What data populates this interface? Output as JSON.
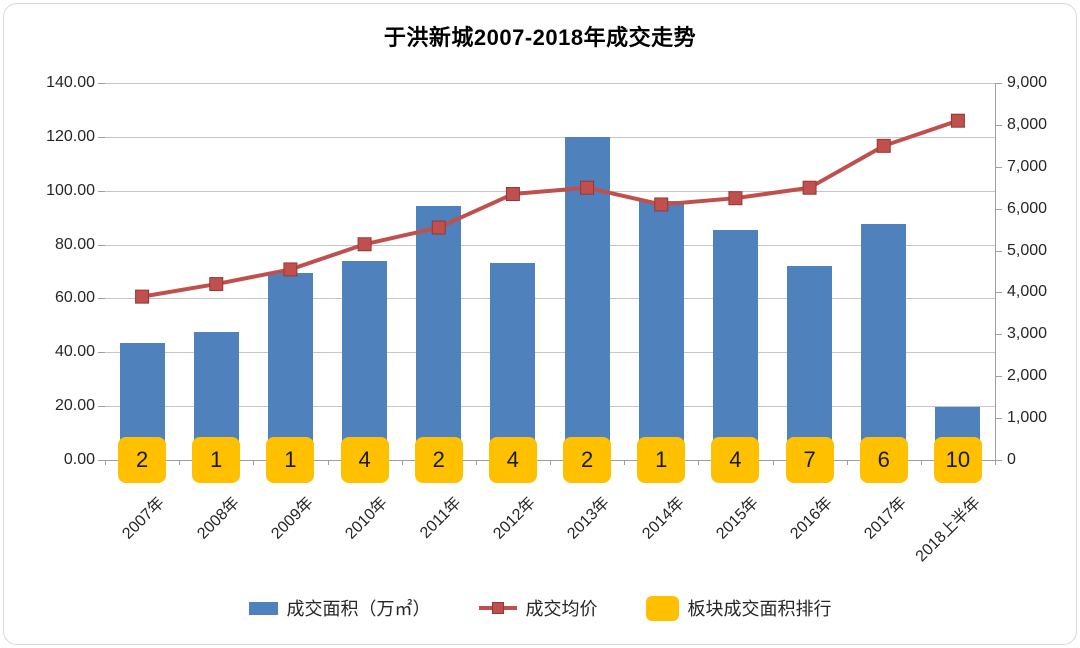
{
  "title": "于洪新城2007-2018年成交走势",
  "chart_data": {
    "type": "bar",
    "subtype": "bar+line combo with ranking badges",
    "title": "于洪新城2007-2018年成交走势",
    "categories": [
      "2007年",
      "2008年",
      "2009年",
      "2010年",
      "2011年",
      "2012年",
      "2013年",
      "2014年",
      "2015年",
      "2016年",
      "2017年",
      "2018上半年"
    ],
    "series": [
      {
        "name": "成交面积（万㎡）",
        "type": "bar",
        "axis": "left",
        "color": "#4f81bd",
        "values": [
          43.5,
          47.5,
          69.5,
          74.0,
          94.5,
          73.0,
          120.0,
          96.0,
          85.5,
          72.0,
          87.5,
          19.8
        ]
      },
      {
        "name": "成交均价",
        "type": "line",
        "axis": "right",
        "color": "#c0504d",
        "marker": "square",
        "values": [
          3900,
          4200,
          4550,
          5150,
          5550,
          6350,
          6500,
          6100,
          6250,
          6500,
          7500,
          8100
        ]
      },
      {
        "name": "板块成交面积排行",
        "type": "badge",
        "color": "#ffc000",
        "values": [
          2,
          1,
          1,
          4,
          2,
          4,
          2,
          1,
          4,
          7,
          6,
          10
        ]
      }
    ],
    "left_axis": {
      "min": 0,
      "max": 140,
      "step": 20,
      "ticks": [
        "0.00",
        "20.00",
        "40.00",
        "60.00",
        "80.00",
        "100.00",
        "120.00",
        "140.00"
      ]
    },
    "right_axis": {
      "min": 0,
      "max": 9000,
      "step": 1000,
      "ticks": [
        "0",
        "1,000",
        "2,000",
        "3,000",
        "4,000",
        "5,000",
        "6,000",
        "7,000",
        "8,000",
        "9,000"
      ]
    },
    "grid": true,
    "legend_position": "bottom"
  },
  "legend": {
    "items": [
      {
        "label": "成交面积（万㎡）",
        "swatch": "bar",
        "color": "#4f81bd"
      },
      {
        "label": "成交均价",
        "swatch": "line",
        "color": "#c0504d"
      },
      {
        "label": "板块成交面积排行",
        "swatch": "badge",
        "color": "#ffc000"
      }
    ]
  },
  "colors": {
    "bar": "#4f81bd",
    "line": "#c0504d",
    "line_marker_border": "#953735",
    "badge": "#ffc000",
    "gridline": "#c6c6c6",
    "axis": "#9f9f9f",
    "text": "#262626"
  }
}
